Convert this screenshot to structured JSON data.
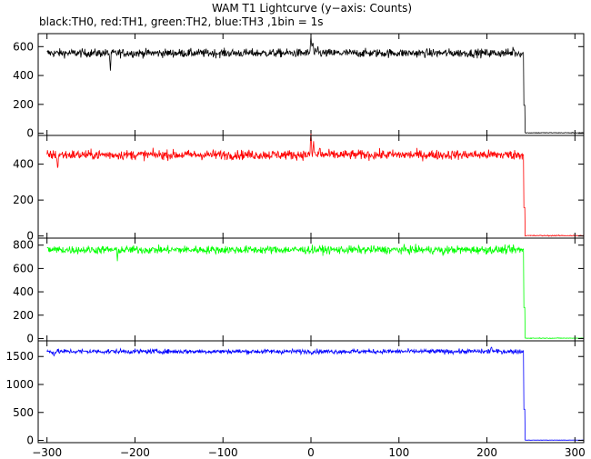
{
  "title": "WAM T1 Lightcurve (y−axis: Counts)",
  "subtitle": "black:TH0, red:TH1, green:TH2, blue:TH3 ,1bin = 1s",
  "chart_data": [
    {
      "type": "line",
      "series": [
        {
          "name": "TH0",
          "color": "#000000",
          "baseline": 555,
          "noise": 38,
          "drop_at": 242,
          "post_value": 3,
          "features": [
            {
              "x": -228,
              "dy": -120
            },
            {
              "x": 0,
              "dy": 120
            },
            {
              "x": 2,
              "dy": 80
            },
            {
              "x": 8,
              "dy": 40
            },
            {
              "x": 230,
              "dy": 40
            }
          ]
        }
      ],
      "xlim": [
        -310,
        310
      ],
      "ylim": [
        -15,
        690
      ],
      "yticks": [
        0,
        200,
        400,
        600
      ],
      "ytick_labels": [
        "0",
        "200",
        "400",
        "600"
      ]
    },
    {
      "type": "line",
      "series": [
        {
          "name": "TH1",
          "color": "#ff0000",
          "baseline": 452,
          "noise": 35,
          "drop_at": 242,
          "post_value": 2,
          "features": [
            {
              "x": -288,
              "dy": -80
            },
            {
              "x": 0,
              "dy": 110
            },
            {
              "x": 3,
              "dy": 70
            },
            {
              "x": 10,
              "dy": 40
            }
          ]
        }
      ],
      "xlim": [
        -310,
        310
      ],
      "ylim": [
        -12,
        560
      ],
      "yticks": [
        0,
        200,
        400
      ],
      "ytick_labels": [
        "0",
        "200",
        "400"
      ]
    },
    {
      "type": "line",
      "series": [
        {
          "name": "TH2",
          "color": "#00ff00",
          "baseline": 760,
          "noise": 45,
          "drop_at": 242,
          "post_value": 3,
          "features": [
            {
              "x": -220,
              "dy": -90
            },
            {
              "x": 150,
              "dy": -70
            }
          ]
        }
      ],
      "xlim": [
        -310,
        310
      ],
      "ylim": [
        -20,
        860
      ],
      "yticks": [
        0,
        200,
        400,
        600,
        800
      ],
      "ytick_labels": [
        "0",
        "200",
        "400",
        "600",
        "800"
      ]
    },
    {
      "type": "line",
      "series": [
        {
          "name": "TH3",
          "color": "#0000ff",
          "baseline": 1590,
          "noise": 55,
          "drop_at": 242,
          "post_value": 5,
          "features": [
            {
              "x": -292,
              "dy": -90
            },
            {
              "x": 205,
              "dy": 110
            }
          ]
        }
      ],
      "xlim": [
        -310,
        310
      ],
      "ylim": [
        -40,
        1780
      ],
      "yticks": [
        0,
        500,
        1000,
        1500
      ],
      "ytick_labels": [
        "0",
        "500",
        "1000",
        "1500"
      ],
      "xticks": [
        -300,
        -200,
        -100,
        0,
        100,
        200,
        300
      ],
      "xtick_labels": [
        "−300",
        "−200",
        "−100",
        "0",
        "100",
        "200",
        "300"
      ]
    }
  ]
}
